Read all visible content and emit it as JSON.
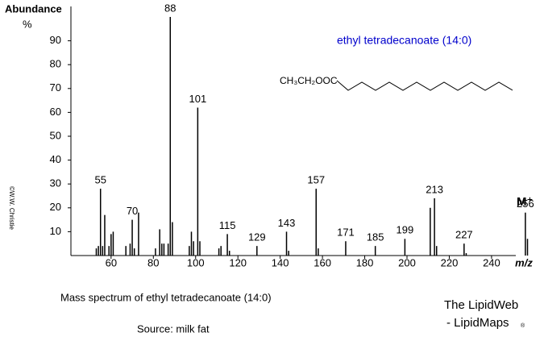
{
  "chart_data": {
    "type": "bar",
    "y_axis_label": "Abundance",
    "y_axis_unit": "%",
    "x_axis_label": "m/z",
    "title": "ethyl tetradecanoate (14:0)",
    "structure_label": "CH₃CH₂OOC",
    "molecular_ion_label": "M⁺",
    "caption": "Mass spectrum of ethyl tetradecanoate (14:0)",
    "source": "Source:  milk fat",
    "credit_line1": "The LipidWeb",
    "credit_line2": "- LipidMaps",
    "credit_mark": "®",
    "copyright": "©W.W. Christie",
    "color": "#000000",
    "x": [
      53,
      54,
      55,
      56,
      57,
      59,
      60,
      61,
      67,
      69,
      70,
      71,
      73,
      81,
      83,
      84,
      85,
      87,
      88,
      89,
      97,
      98,
      99,
      101,
      102,
      111,
      112,
      115,
      116,
      129,
      143,
      144,
      157,
      158,
      171,
      185,
      199,
      211,
      213,
      214,
      227,
      228,
      256,
      257
    ],
    "values": [
      3,
      4,
      28,
      4,
      17,
      4,
      9,
      10,
      4,
      5,
      15,
      3,
      18,
      3,
      11,
      5,
      5,
      5,
      100,
      14,
      4,
      10,
      6,
      62,
      6,
      3,
      4,
      9,
      2,
      4,
      10,
      2,
      28,
      3,
      6,
      4,
      7,
      20,
      24,
      4,
      5,
      1,
      18,
      7
    ],
    "peak_labels": [
      55,
      70,
      88,
      101,
      115,
      129,
      143,
      157,
      171,
      185,
      199,
      213,
      227,
      256
    ],
    "xlim": [
      41,
      261
    ],
    "xticks": [
      60,
      80,
      100,
      120,
      140,
      160,
      180,
      200,
      220,
      240
    ],
    "ylim": [
      0,
      100
    ],
    "yticks": [
      10,
      20,
      30,
      40,
      50,
      60,
      70,
      80,
      90
    ]
  }
}
